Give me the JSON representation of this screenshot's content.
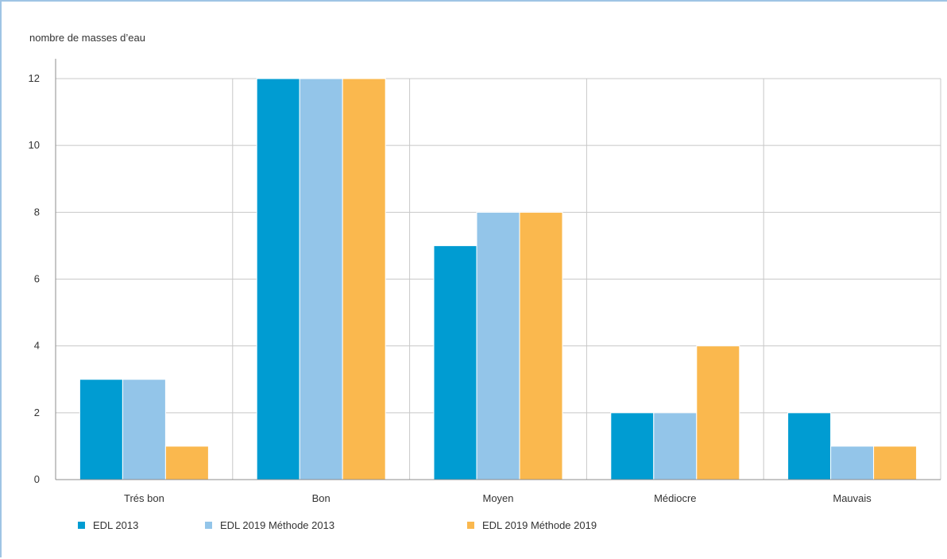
{
  "chart_data": {
    "type": "bar",
    "ylabel": "nombre de masses d’eau",
    "xlabel": "",
    "ylim": [
      0,
      12
    ],
    "yticks": [
      0,
      2,
      4,
      6,
      8,
      10,
      12
    ],
    "grid": true,
    "legend_position": "bottom-left",
    "categories": [
      "Trés bon",
      "Bon",
      "Moyen",
      "Médiocre",
      "Mauvais"
    ],
    "series": [
      {
        "name": "EDL 2013",
        "color": "#009cd2",
        "values": [
          3,
          12,
          7,
          2,
          2
        ]
      },
      {
        "name": "EDL 2019 Méthode 2013",
        "color": "#93c5e9",
        "values": [
          3,
          12,
          8,
          2,
          1
        ]
      },
      {
        "name": "EDL 2019 Méthode 2019",
        "color": "#fab84e",
        "values": [
          1,
          12,
          8,
          4,
          1
        ]
      }
    ]
  }
}
